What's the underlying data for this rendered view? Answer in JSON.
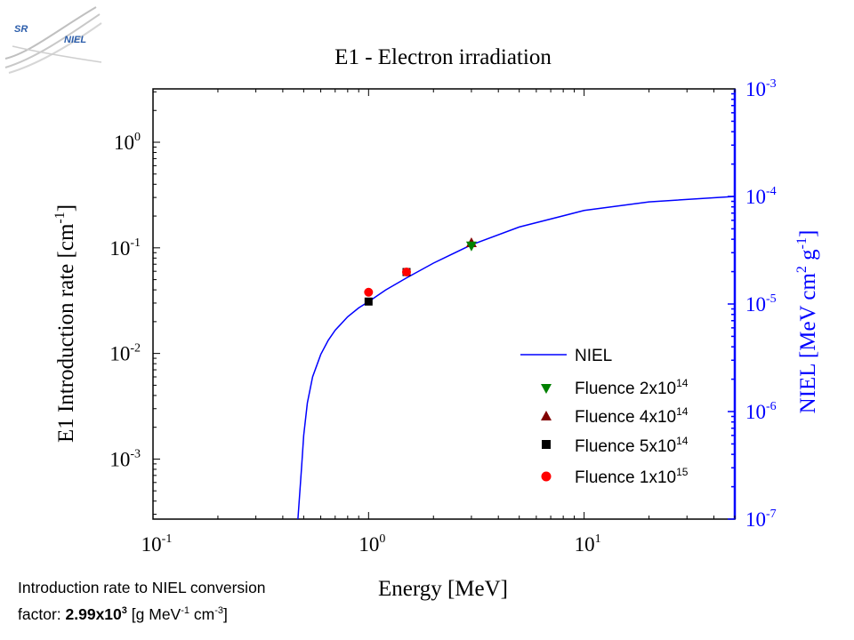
{
  "logo": {
    "text_sr": "SR",
    "text_niel": "NIEL"
  },
  "note": {
    "line1": "Introduction rate to NIEL conversion",
    "prefix": "factor:",
    "value_base": "2.99x10",
    "value_exp": "3",
    "unit_a": "[g MeV",
    "unit_exp1": "-1",
    "unit_b": " cm",
    "unit_exp2": "-3",
    "unit_c": "]"
  },
  "colors": {
    "niel_line": "#0000ff",
    "right_axis": "#0000ff",
    "fluence_2e14": "#008000",
    "fluence_4e14": "#800000",
    "fluence_5e14": "#000000",
    "fluence_1e15": "#ff0000"
  },
  "chart_data": {
    "type": "scatter",
    "title": "E1 - Electron irradiation",
    "xlabel": "Energy [MeV]",
    "x_scale": "log",
    "xlim": [
      0.1,
      50
    ],
    "x_ticks": [
      {
        "base": "10",
        "exp": "-1",
        "value": 0.1
      },
      {
        "base": "10",
        "exp": "0",
        "value": 1
      },
      {
        "base": "10",
        "exp": "1",
        "value": 10
      }
    ],
    "ylabel_left": {
      "text": "E1 Introduction rate [cm",
      "exp": "-1",
      "close": "]"
    },
    "y_left_scale": "log",
    "y_left_lim": [
      0.00027,
      3.2
    ],
    "y_left_ticks": [
      {
        "base": "10",
        "exp": "0",
        "value": 1
      },
      {
        "base": "10",
        "exp": "-1",
        "value": 0.1
      },
      {
        "base": "10",
        "exp": "-2",
        "value": 0.01
      },
      {
        "base": "10",
        "exp": "-3",
        "value": 0.001
      }
    ],
    "ylabel_right": {
      "text": "NIEL [MeV cm",
      "exp1": "2",
      "mid": " g",
      "exp2": "-1",
      "close": "]"
    },
    "y_right_scale": "log",
    "y_right_lim": [
      1e-07,
      0.001
    ],
    "y_right_ticks": [
      {
        "base": "10",
        "exp": "-3",
        "value": 0.001
      },
      {
        "base": "10",
        "exp": "-4",
        "value": 0.0001
      },
      {
        "base": "10",
        "exp": "-5",
        "value": 1e-05
      },
      {
        "base": "10",
        "exp": "-6",
        "value": 1e-06
      },
      {
        "base": "10",
        "exp": "-7",
        "value": 1e-07
      }
    ],
    "legend_position": "bottom-right",
    "series": [
      {
        "name": "NIEL",
        "kind": "line",
        "axis": "right",
        "x": [
          0.47,
          0.49,
          0.5,
          0.52,
          0.55,
          0.6,
          0.65,
          0.7,
          0.8,
          0.9,
          1.0,
          1.2,
          1.5,
          2.0,
          3.0,
          5.0,
          10.0,
          20.0,
          50.0
        ],
        "y": [
          1e-07,
          3.2e-07,
          6e-07,
          1.2e-06,
          2.1e-06,
          3.4e-06,
          4.6e-06,
          5.7e-06,
          7.6e-06,
          9.2e-06,
          1.05e-05,
          1.35e-05,
          1.75e-05,
          2.4e-05,
          3.55e-05,
          5.2e-05,
          7.4e-05,
          8.9e-05,
          0.0001
        ]
      },
      {
        "name": "Fluence 2x10",
        "name_exp": "14",
        "kind": "marker",
        "marker": "triangle-down",
        "axis": "left",
        "x": [
          3.0
        ],
        "y": [
          0.104
        ]
      },
      {
        "name": "Fluence 4x10",
        "name_exp": "14",
        "kind": "marker",
        "marker": "triangle-up",
        "axis": "left",
        "x": [
          3.0
        ],
        "y": [
          0.112
        ]
      },
      {
        "name": "Fluence 5x10",
        "name_exp": "14",
        "kind": "marker",
        "marker": "square",
        "axis": "left",
        "x": [
          1.0,
          1.5
        ],
        "y": [
          0.031,
          0.059
        ]
      },
      {
        "name": "Fluence 1x10",
        "name_exp": "15",
        "kind": "marker",
        "marker": "circle",
        "axis": "left",
        "x": [
          1.0,
          1.5
        ],
        "y": [
          0.038,
          0.059
        ]
      }
    ]
  }
}
